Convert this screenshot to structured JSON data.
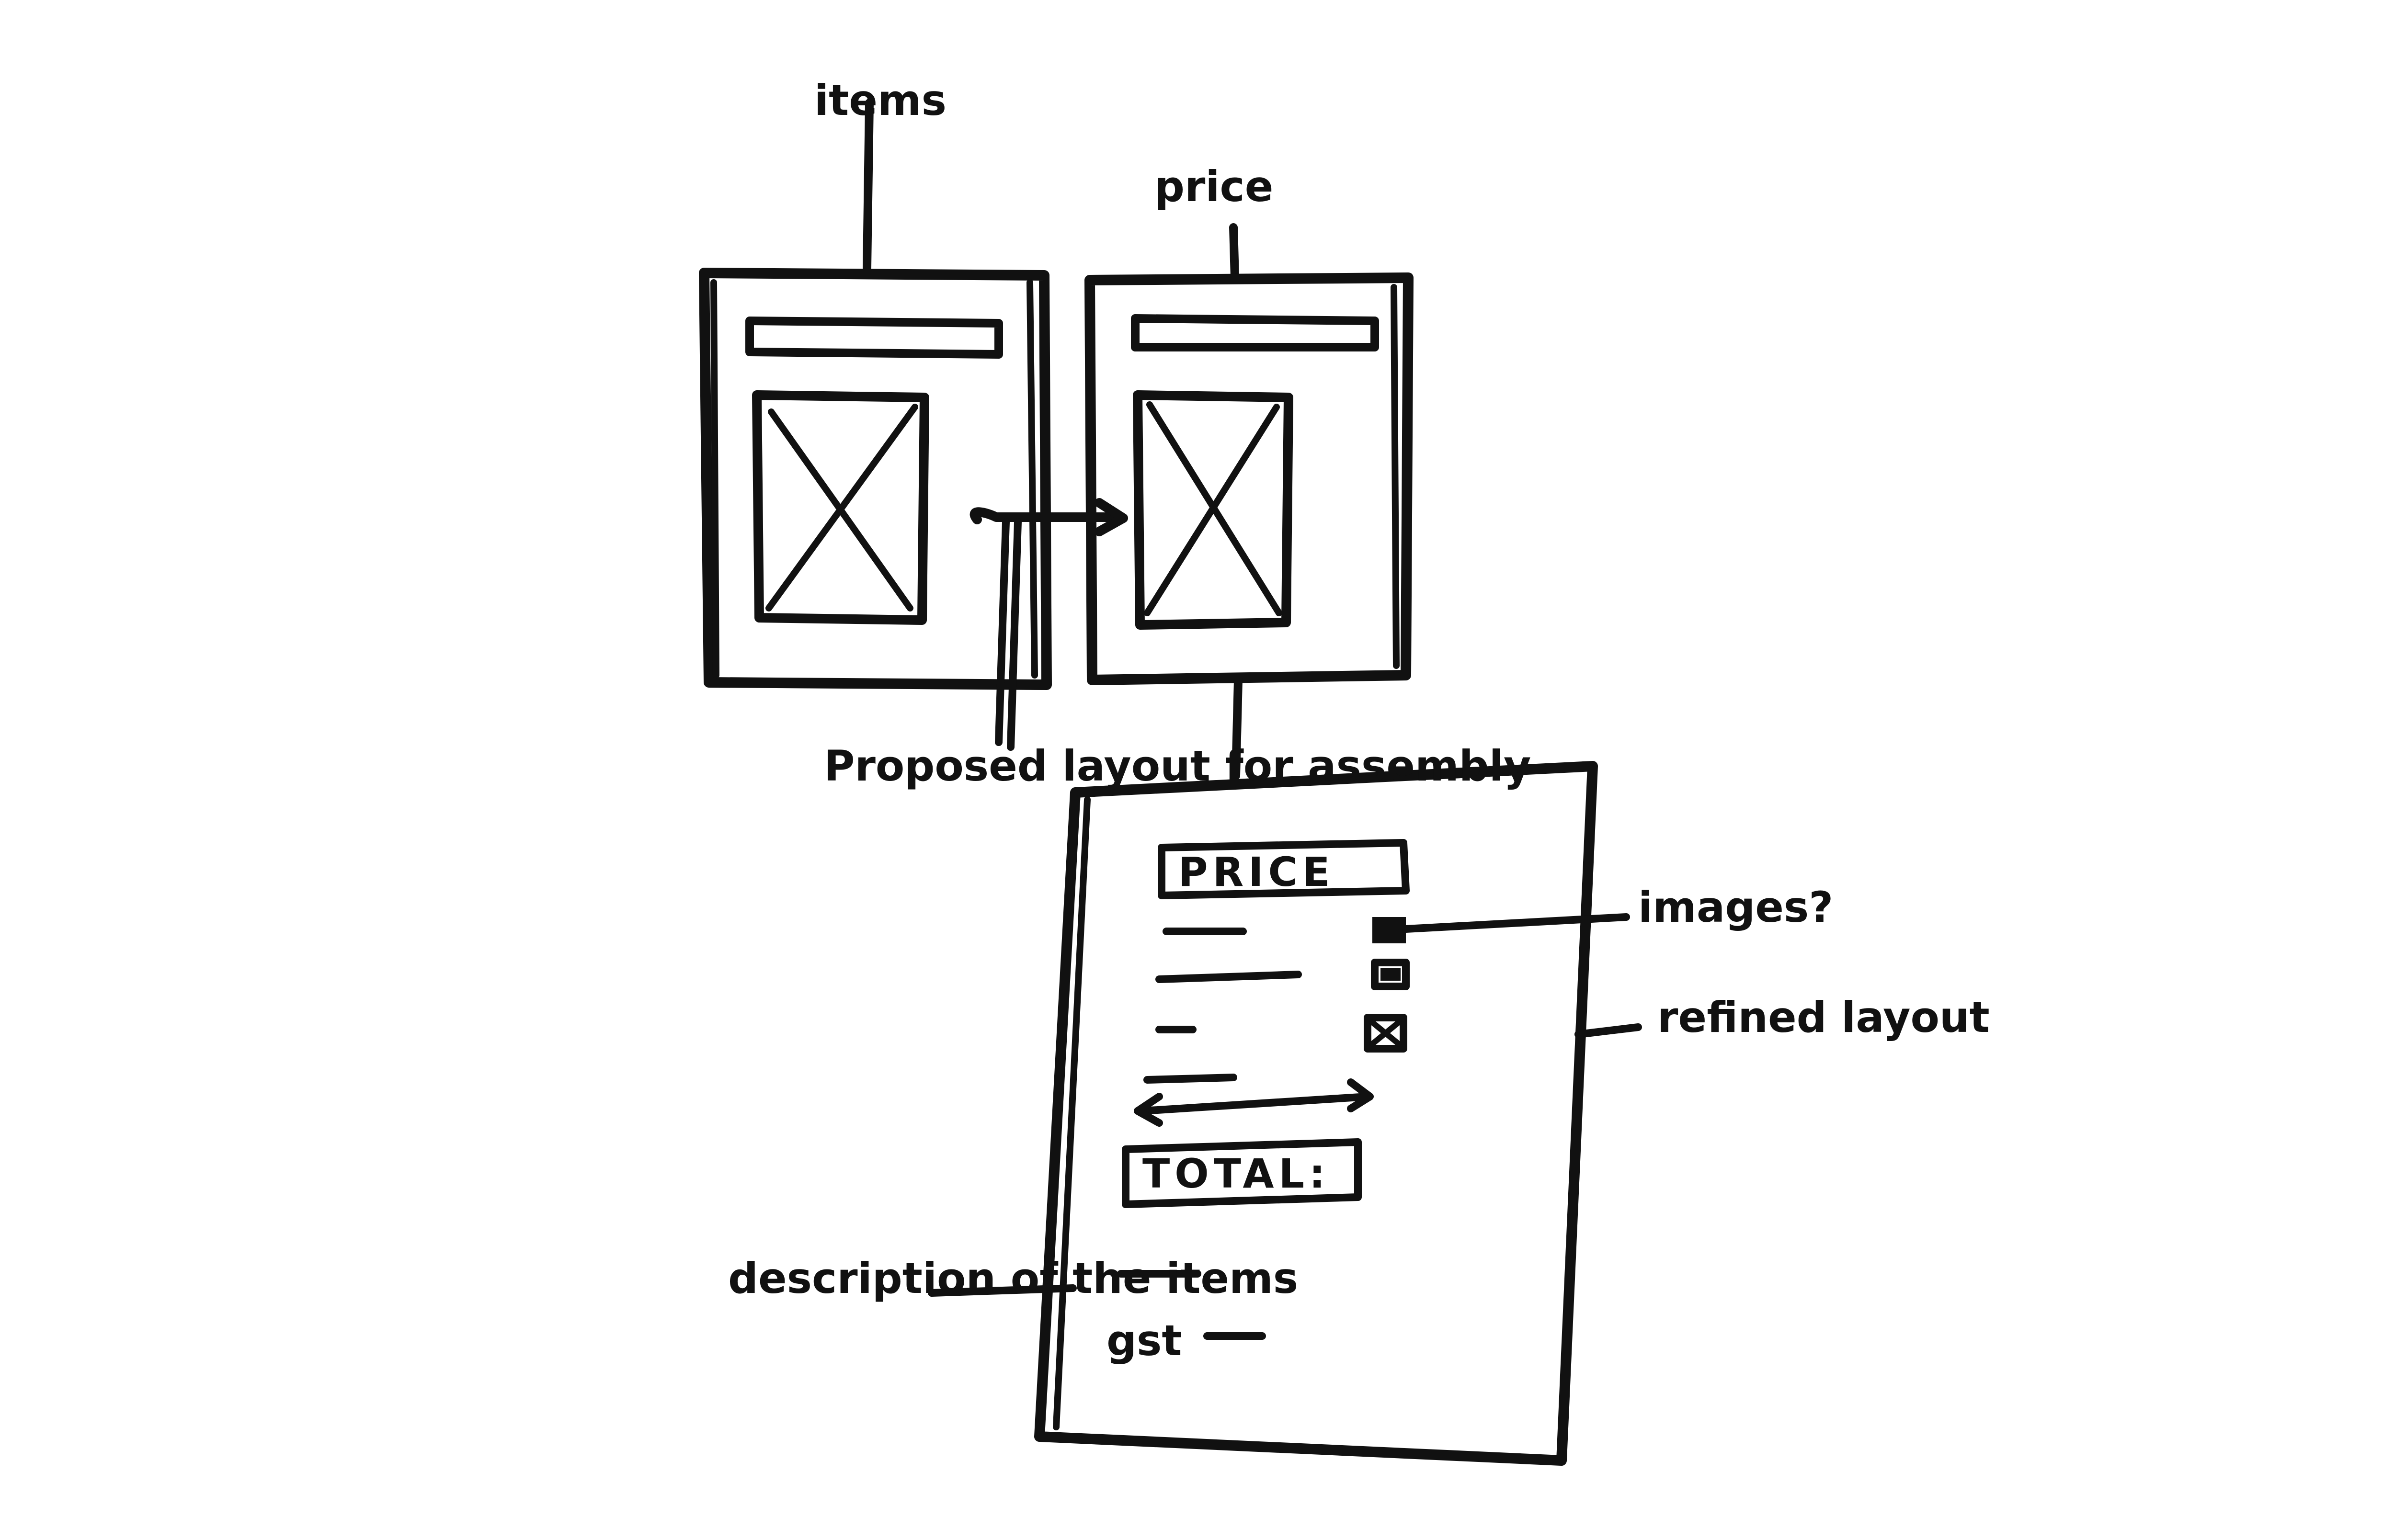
{
  "annotations": {
    "items": "items",
    "price": "price",
    "proposed_layout": "Proposed layout for assembly",
    "images": "images?",
    "refined_layout": "refined layout",
    "description": "description of the items"
  },
  "receipt": {
    "price_header": "PRICE",
    "total_header": "TOTAL:",
    "gst_label": "gst"
  },
  "colors": {
    "ink": "#111111",
    "paper": "#ffffff"
  }
}
